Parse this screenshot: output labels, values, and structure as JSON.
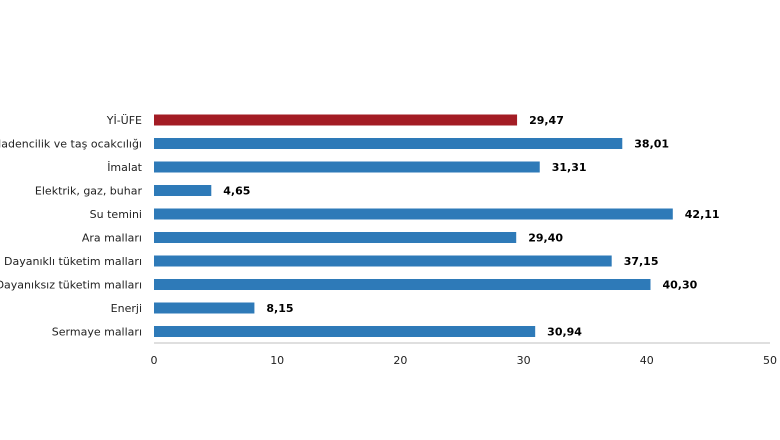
{
  "chart_data": {
    "type": "bar",
    "orientation": "horizontal",
    "title": "",
    "xlabel": "",
    "ylabel": "",
    "xlim": [
      0,
      50
    ],
    "x_ticks": [
      "0",
      "10",
      "20",
      "30",
      "40",
      "50"
    ],
    "grid": false,
    "legend": "none",
    "categories": [
      "Yİ-ÜFE",
      "Madencilik ve taş ocakcılığı",
      "İmalat",
      "Elektrik, gaz, buhar",
      "Su temini",
      "Ara malları",
      "Dayanıklı tüketim malları",
      "Dayanıksız tüketim malları",
      "Enerji",
      "Sermaye malları"
    ],
    "values": [
      29.47,
      38.01,
      31.31,
      4.65,
      42.11,
      29.4,
      37.15,
      40.3,
      8.15,
      30.94
    ],
    "value_labels": [
      "29,47",
      "38,01",
      "31,31",
      "4,65",
      "42,11",
      "29,40",
      "37,15",
      "40,30",
      "8,15",
      "30,94"
    ],
    "colors": {
      "highlight": "#a31c24",
      "default": "#2e7ab8"
    },
    "highlight_index": 0
  }
}
